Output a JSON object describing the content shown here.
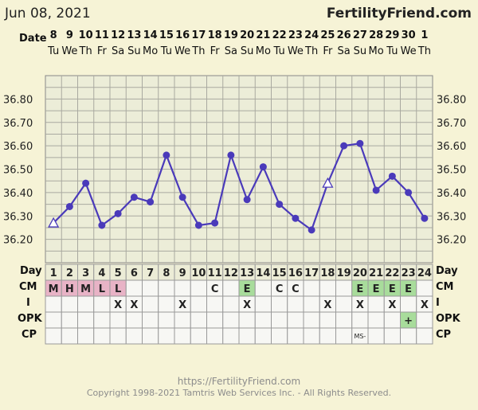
{
  "header": {
    "date": "Jun 08, 2021",
    "site": "FertilityFriend.com"
  },
  "labels": {
    "date": "Date",
    "day": "Day",
    "cm": "CM",
    "i": "I",
    "opk": "OPK",
    "cp": "CP"
  },
  "dates": [
    "8",
    "9",
    "10",
    "11",
    "12",
    "13",
    "14",
    "15",
    "16",
    "17",
    "18",
    "19",
    "20",
    "21",
    "22",
    "23",
    "24",
    "25",
    "26",
    "27",
    "28",
    "29",
    "30",
    "1"
  ],
  "weekdays": [
    "Tu",
    "We",
    "Th",
    "Fr",
    "Sa",
    "Su",
    "Mo",
    "Tu",
    "We",
    "Th",
    "Fr",
    "Sa",
    "Su",
    "Mo",
    "Tu",
    "We",
    "Th",
    "Fr",
    "Sa",
    "Su",
    "Mo",
    "Tu",
    "We",
    "Th"
  ],
  "cycle_days": [
    "1",
    "2",
    "3",
    "4",
    "5",
    "6",
    "7",
    "8",
    "9",
    "10",
    "11",
    "12",
    "13",
    "14",
    "15",
    "16",
    "17",
    "18",
    "19",
    "20",
    "21",
    "22",
    "23",
    "24"
  ],
  "cm": [
    "M",
    "H",
    "M",
    "L",
    "L",
    "",
    "",
    "",
    "",
    "",
    "C",
    "",
    "E",
    "",
    "C",
    "C",
    "",
    "",
    "",
    "E",
    "E",
    "E",
    "E",
    ""
  ],
  "cm_colors": {
    "M": "#e8b3c6",
    "H": "#e8b3c6",
    "L": "#e8b3c6",
    "E": "#a8dc9b"
  },
  "intercourse": [
    "",
    "",
    "",
    "",
    "X",
    "X",
    "",
    "",
    "X",
    "",
    "",
    "",
    "X",
    "",
    "",
    "",
    "",
    "X",
    "",
    "X",
    "",
    "X",
    "",
    "X"
  ],
  "opk": [
    "",
    "",
    "",
    "",
    "",
    "",
    "",
    "",
    "",
    "",
    "",
    "",
    "",
    "",
    "",
    "",
    "",
    "",
    "",
    "",
    "",
    "",
    "+",
    ""
  ],
  "opk_colors": {
    "+": "#a8dc9b"
  },
  "cp": [
    "",
    "",
    "",
    "",
    "",
    "",
    "",
    "",
    "",
    "",
    "",
    "",
    "",
    "",
    "",
    "",
    "",
    "",
    "",
    "MS-",
    "",
    "",
    "",
    ""
  ],
  "chart_data": {
    "type": "line",
    "series": [
      {
        "values": [
          36.27,
          36.34,
          36.44,
          36.26,
          36.31,
          36.38,
          36.36,
          36.56,
          36.38,
          36.26,
          36.27,
          36.56,
          36.37,
          36.51,
          36.35,
          36.29,
          36.24,
          36.44,
          36.6,
          36.61,
          36.41,
          36.47,
          36.4,
          36.29
        ],
        "markers": [
          "open-triangle",
          "dot",
          "dot",
          "dot",
          "dot",
          "dot",
          "dot",
          "dot",
          "dot",
          "dot",
          "dot",
          "dot",
          "dot",
          "dot",
          "dot",
          "dot",
          "dot",
          "open-triangle",
          "dot",
          "dot",
          "dot",
          "dot",
          "dot",
          "dot"
        ]
      }
    ],
    "y_ticks": [
      "36.80",
      "36.70",
      "36.60",
      "36.50",
      "36.40",
      "36.30",
      "36.20"
    ],
    "ylim": [
      36.1,
      36.9
    ],
    "line_color": "#4a3aba",
    "grid": true
  },
  "footer": {
    "url": "https://FertilityFriend.com",
    "copyright": "Copyright 1998-2021 Tamtris Web Services Inc. - All Rights Reserved."
  }
}
